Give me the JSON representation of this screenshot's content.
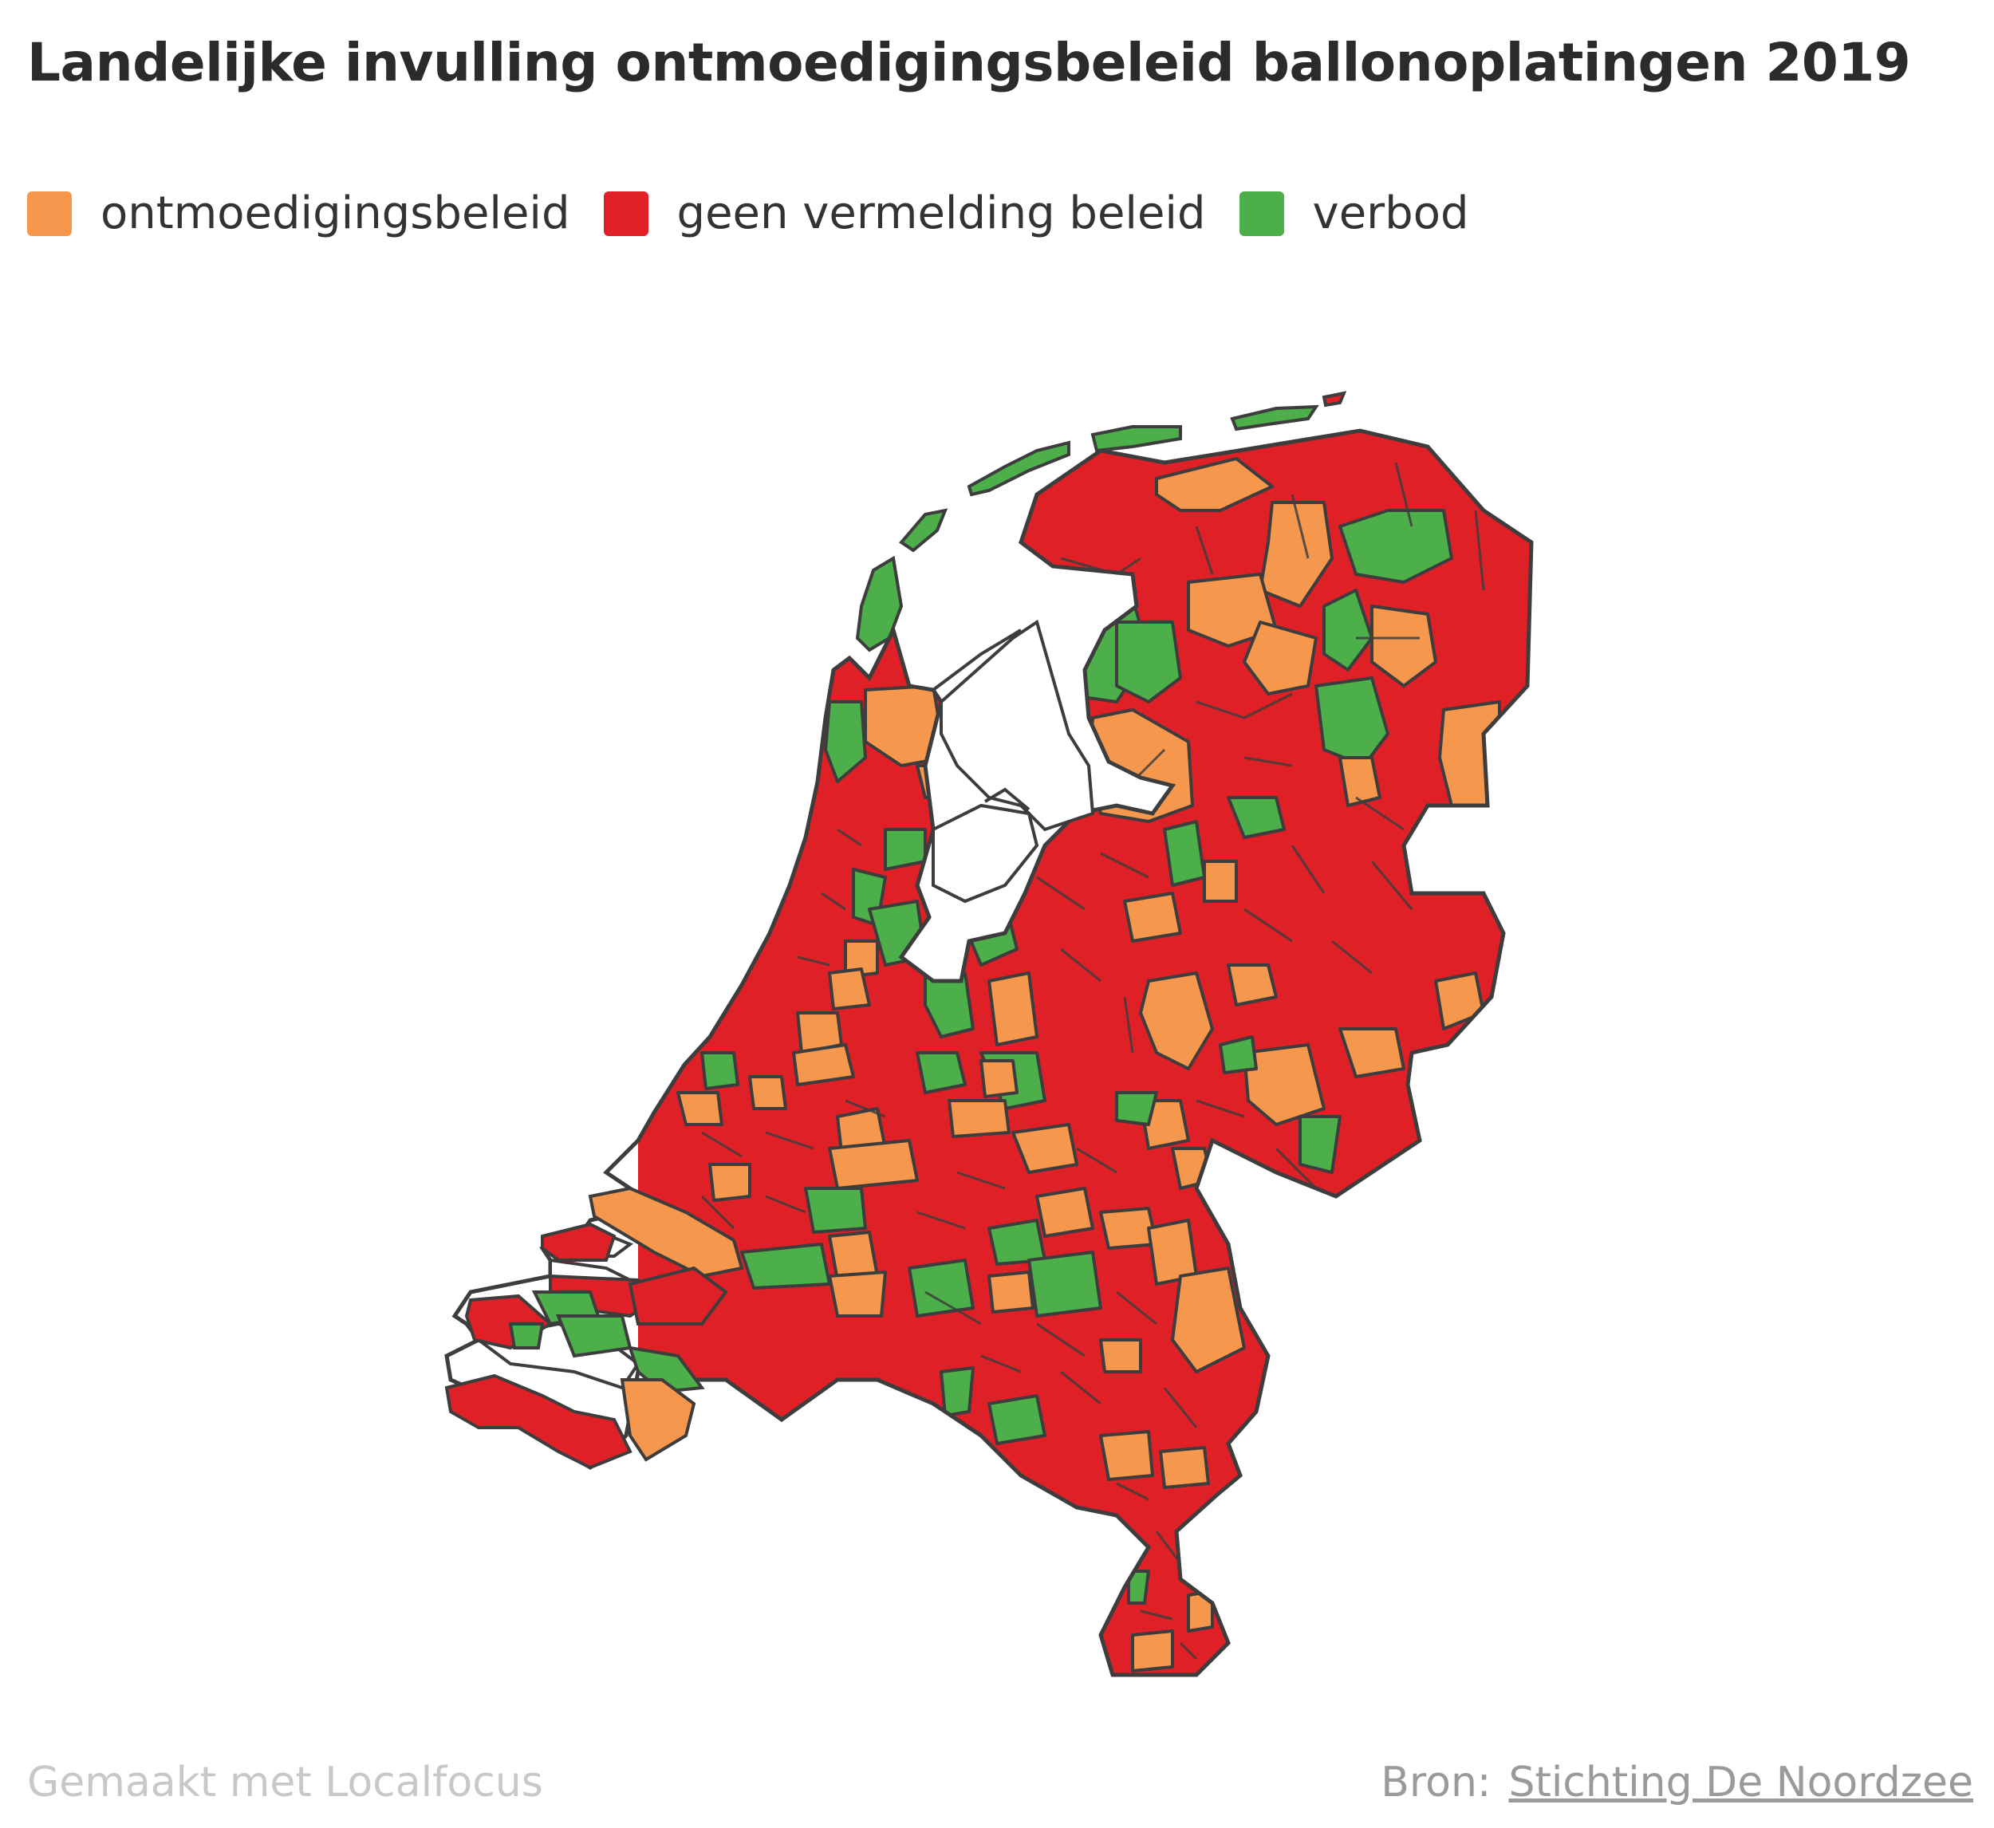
{
  "title": "Landelijke invulling ontmoedigingsbeleid ballonoplatingen 2019",
  "legend": [
    {
      "label": "ontmoedigingsbeleid",
      "color": "#f6974e"
    },
    {
      "label": "geen vermelding beleid",
      "color": "#e02027"
    },
    {
      "label": "verbod",
      "color": "#4daf4a"
    }
  ],
  "footer": {
    "credit": "Gemaakt met Localfocus",
    "source_prefix": "Bron:",
    "source_link": "Stichting De Noordzee"
  },
  "colors": {
    "orange": "#f6974e",
    "red": "#e02027",
    "green": "#4daf4a",
    "border": "#3d3d3d"
  }
}
